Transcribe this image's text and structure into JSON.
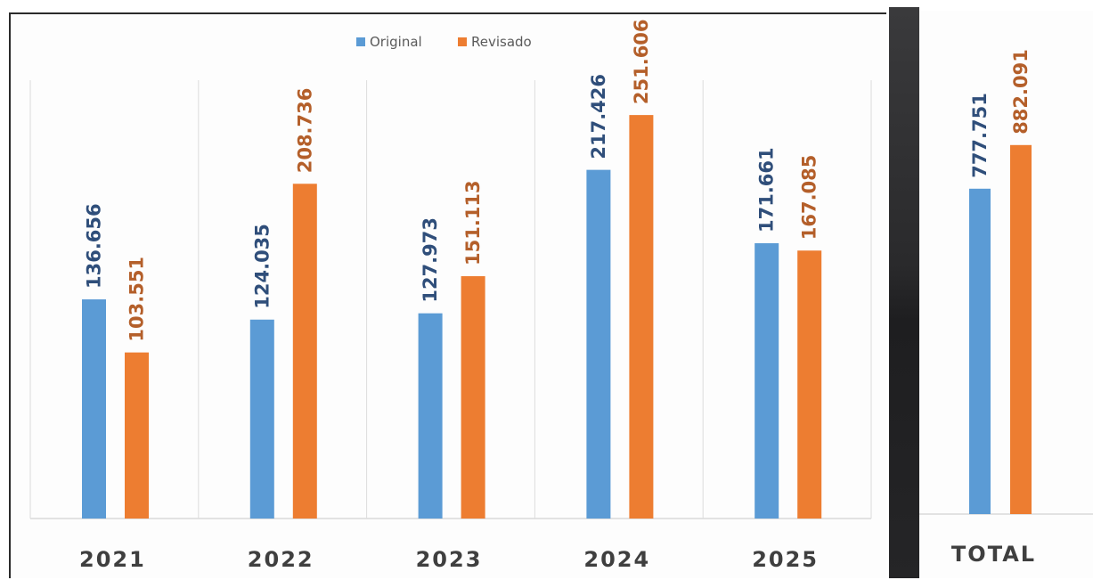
{
  "chart_data": [
    {
      "type": "bar",
      "categories": [
        "2021",
        "2022",
        "2023",
        "2024",
        "2025"
      ],
      "series": [
        {
          "name": "Original",
          "values": [
            136.656,
            124.035,
            127.973,
            217.426,
            171.661
          ],
          "labels": [
            "136.656",
            "124.035",
            "127.973",
            "217.426",
            "171.661"
          ]
        },
        {
          "name": "Revisado",
          "values": [
            103.551,
            208.736,
            151.113,
            251.606,
            167.085
          ],
          "labels": [
            "103.551",
            "208.736",
            "151.113",
            "251.606",
            "167.085"
          ]
        }
      ],
      "ylim": [
        0,
        300
      ],
      "grid": "vertical-separators",
      "legend": "top-center"
    },
    {
      "type": "bar",
      "categories": [
        "TOTAL"
      ],
      "series": [
        {
          "name": "Original",
          "values": [
            777.751
          ],
          "labels": [
            "777.751"
          ]
        },
        {
          "name": "Revisado",
          "values": [
            882.091
          ],
          "labels": [
            "882.091"
          ]
        }
      ],
      "ylim": [
        0,
        1150
      ]
    }
  ],
  "colors": {
    "original": "#5b9bd5",
    "revisado": "#ed7d31",
    "original_label": "#2f4e7a",
    "revisado_label": "#b45f2a",
    "category_text": "#3f3f3f"
  }
}
